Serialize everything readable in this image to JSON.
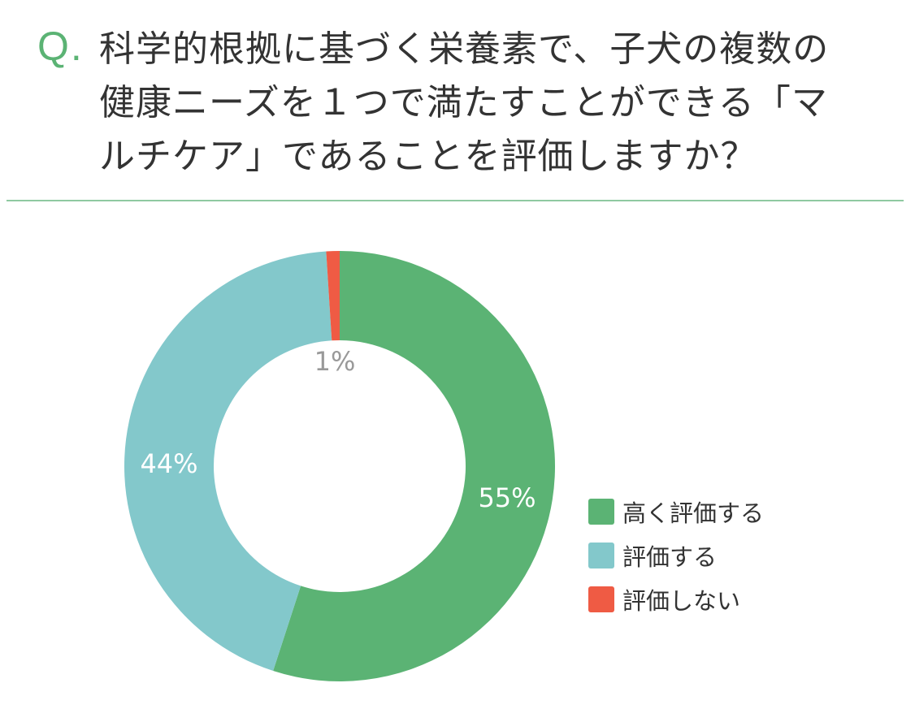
{
  "question": {
    "prefix": "Q.",
    "lines": [
      "科学的根拠に基づく栄養素で、子犬の複数の",
      "健康ニーズを１つで満たすことができる「マ",
      "ルチケア」であることを評価しますか？"
    ]
  },
  "chart_data": {
    "type": "pie",
    "style": "donut",
    "legend_position": "right",
    "categories": [
      "高く評価する",
      "評価する",
      "評価しない"
    ],
    "values": [
      55,
      44,
      1
    ],
    "labels": [
      "55%",
      "44%",
      "1%"
    ],
    "colors": [
      "#5bb374",
      "#83c8cb",
      "#ef5b44"
    ],
    "label_colors": [
      "#ffffff",
      "#ffffff",
      "#999999"
    ]
  }
}
